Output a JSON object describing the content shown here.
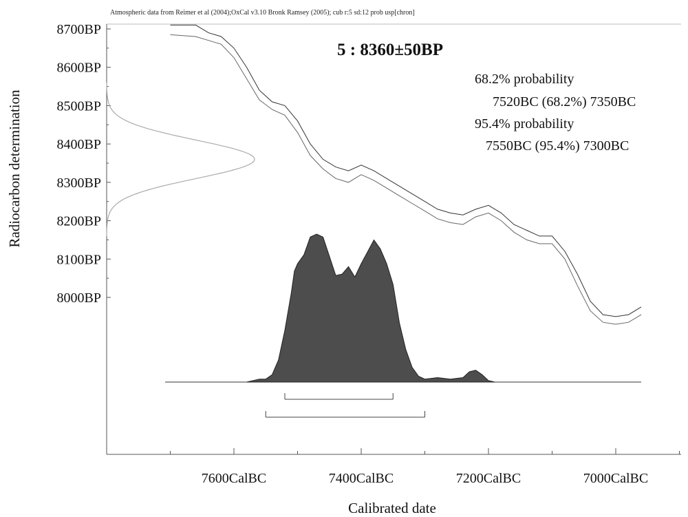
{
  "header": "Atmospheric data from Reimer et al (2004);OxCal v3.10 Bronk Ramsey (2005); cub r:5 sd:12 prob usp[chron]",
  "sample_title": "5 : 8360±50BP",
  "probabilities": [
    {
      "heading": "68.2% probability",
      "range": "7520BC (68.2%) 7350BC"
    },
    {
      "heading": "95.4% probability",
      "range": "7550BC (95.4%) 7300BC"
    }
  ],
  "colors": {
    "posterior_fill": "#4d4d4d",
    "curve": "#333333",
    "radiocarbon_dist": "#aaaaaa",
    "axis": "#555555"
  },
  "chart_data": {
    "type": "area",
    "xlabel": "Calibrated date",
    "ylabel": "Radiocarbon determination",
    "x_ticks": [
      {
        "value": -7600,
        "label": "7600CalBC"
      },
      {
        "value": -7400,
        "label": "7400CalBC"
      },
      {
        "value": -7200,
        "label": "7200CalBC"
      },
      {
        "value": -7000,
        "label": "7000CalBC"
      }
    ],
    "y_ticks": [
      {
        "value": 8700,
        "label": "8700BP"
      },
      {
        "value": 8600,
        "label": "8600BP"
      },
      {
        "value": 8500,
        "label": "8500BP"
      },
      {
        "value": 8400,
        "label": "8400BP"
      },
      {
        "value": 8300,
        "label": "8300BP"
      },
      {
        "value": 8200,
        "label": "8200BP"
      },
      {
        "value": 8100,
        "label": "8100BP"
      },
      {
        "value": 8000,
        "label": "8000BP"
      }
    ],
    "x_range": [
      -7800,
      -6930
    ],
    "y_range": [
      7760,
      8710
    ],
    "radiocarbon_measurement": {
      "mean": 8360,
      "sd": 50
    },
    "calibration_curve_upper": [
      [
        -7700,
        8710
      ],
      [
        -7660,
        8710
      ],
      [
        -7640,
        8690
      ],
      [
        -7620,
        8680
      ],
      [
        -7600,
        8650
      ],
      [
        -7580,
        8600
      ],
      [
        -7560,
        8540
      ],
      [
        -7540,
        8510
      ],
      [
        -7520,
        8500
      ],
      [
        -7500,
        8460
      ],
      [
        -7480,
        8400
      ],
      [
        -7460,
        8360
      ],
      [
        -7440,
        8340
      ],
      [
        -7420,
        8330
      ],
      [
        -7400,
        8345
      ],
      [
        -7380,
        8330
      ],
      [
        -7360,
        8310
      ],
      [
        -7340,
        8290
      ],
      [
        -7320,
        8270
      ],
      [
        -7300,
        8250
      ],
      [
        -7280,
        8230
      ],
      [
        -7260,
        8220
      ],
      [
        -7240,
        8215
      ],
      [
        -7220,
        8230
      ],
      [
        -7200,
        8240
      ],
      [
        -7180,
        8220
      ],
      [
        -7160,
        8190
      ],
      [
        -7140,
        8175
      ],
      [
        -7120,
        8160
      ],
      [
        -7100,
        8160
      ],
      [
        -7080,
        8120
      ],
      [
        -7060,
        8060
      ],
      [
        -7040,
        7990
      ],
      [
        -7020,
        7955
      ],
      [
        -7000,
        7950
      ],
      [
        -6980,
        7955
      ],
      [
        -6960,
        7975
      ]
    ],
    "calibration_curve_lower": [
      [
        -7700,
        8685
      ],
      [
        -7660,
        8680
      ],
      [
        -7640,
        8670
      ],
      [
        -7620,
        8660
      ],
      [
        -7600,
        8625
      ],
      [
        -7580,
        8570
      ],
      [
        -7560,
        8515
      ],
      [
        -7540,
        8490
      ],
      [
        -7520,
        8475
      ],
      [
        -7500,
        8430
      ],
      [
        -7480,
        8370
      ],
      [
        -7460,
        8335
      ],
      [
        -7440,
        8310
      ],
      [
        -7420,
        8300
      ],
      [
        -7400,
        8320
      ],
      [
        -7380,
        8305
      ],
      [
        -7360,
        8285
      ],
      [
        -7340,
        8265
      ],
      [
        -7320,
        8245
      ],
      [
        -7300,
        8225
      ],
      [
        -7280,
        8205
      ],
      [
        -7260,
        8195
      ],
      [
        -7240,
        8190
      ],
      [
        -7220,
        8210
      ],
      [
        -7200,
        8220
      ],
      [
        -7180,
        8200
      ],
      [
        -7160,
        8170
      ],
      [
        -7140,
        8150
      ],
      [
        -7120,
        8140
      ],
      [
        -7100,
        8140
      ],
      [
        -7080,
        8100
      ],
      [
        -7060,
        8030
      ],
      [
        -7040,
        7965
      ],
      [
        -7020,
        7935
      ],
      [
        -7000,
        7930
      ],
      [
        -6980,
        7935
      ],
      [
        -6960,
        7955
      ]
    ],
    "posterior_distribution": [
      [
        -7580,
        0
      ],
      [
        -7560,
        0.02
      ],
      [
        -7550,
        0.02
      ],
      [
        -7540,
        0.05
      ],
      [
        -7530,
        0.15
      ],
      [
        -7520,
        0.35
      ],
      [
        -7510,
        0.6
      ],
      [
        -7505,
        0.75
      ],
      [
        -7500,
        0.8
      ],
      [
        -7490,
        0.86
      ],
      [
        -7480,
        0.98
      ],
      [
        -7470,
        1.0
      ],
      [
        -7460,
        0.98
      ],
      [
        -7450,
        0.85
      ],
      [
        -7440,
        0.72
      ],
      [
        -7430,
        0.73
      ],
      [
        -7420,
        0.78
      ],
      [
        -7410,
        0.71
      ],
      [
        -7400,
        0.8
      ],
      [
        -7390,
        0.88
      ],
      [
        -7380,
        0.96
      ],
      [
        -7370,
        0.9
      ],
      [
        -7360,
        0.8
      ],
      [
        -7350,
        0.66
      ],
      [
        -7340,
        0.4
      ],
      [
        -7330,
        0.22
      ],
      [
        -7320,
        0.1
      ],
      [
        -7310,
        0.04
      ],
      [
        -7300,
        0.02
      ],
      [
        -7280,
        0.03
      ],
      [
        -7260,
        0.02
      ],
      [
        -7240,
        0.03
      ],
      [
        -7230,
        0.07
      ],
      [
        -7220,
        0.08
      ],
      [
        -7210,
        0.05
      ],
      [
        -7200,
        0.01
      ],
      [
        -7190,
        0
      ]
    ],
    "ranges": {
      "p68": [
        -7520,
        -7350
      ],
      "p95": [
        -7550,
        -7300
      ]
    }
  }
}
